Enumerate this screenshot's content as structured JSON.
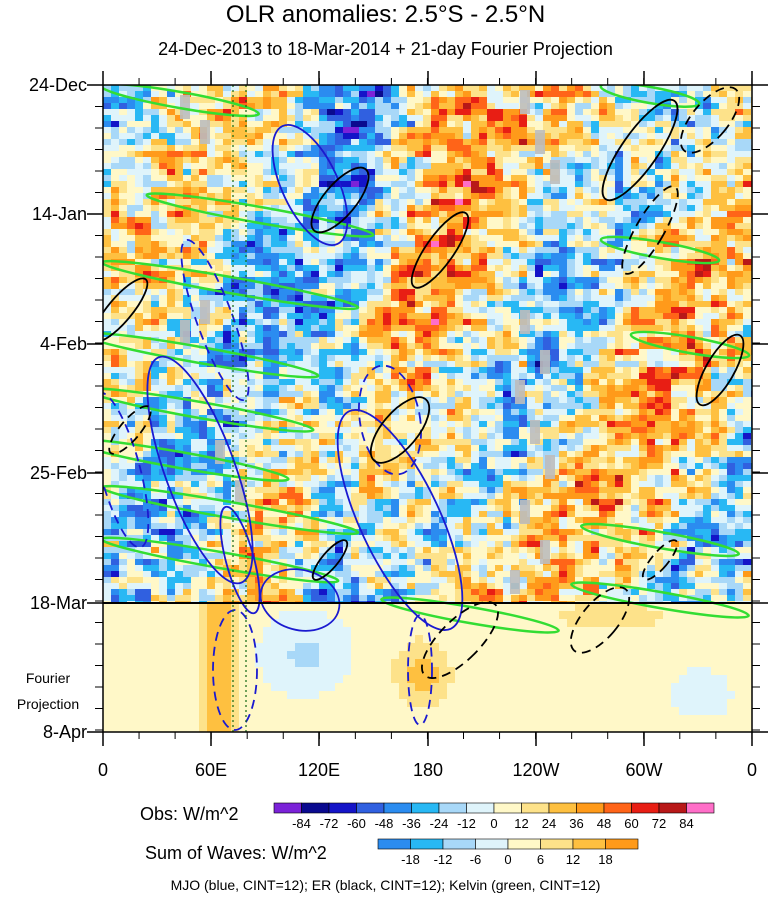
{
  "chart_data": {
    "type": "heatmap",
    "title": "OLR anomalies: 2.5°S - 2.5°N",
    "subtitle": "24-Dec-2013 to 18-Mar-2014 + 21-day Fourier Projection",
    "x_axis": {
      "tick_labels": [
        "0",
        "60E",
        "120E",
        "180",
        "120W",
        "60W",
        "0"
      ],
      "range": [
        0,
        360
      ]
    },
    "y_axis": {
      "tick_labels": [
        "24-Dec",
        "14-Jan",
        "4-Feb",
        "25-Feb",
        "18-Mar",
        "8-Apr"
      ],
      "projection_label": [
        "Fourier",
        "Projection"
      ]
    },
    "divider_date": "18-Mar",
    "obs_legend": {
      "title": "Obs: W/m^2",
      "labels": [
        "-84",
        "-72",
        "-60",
        "-48",
        "-36",
        "-24",
        "-12",
        "0",
        "12",
        "24",
        "36",
        "48",
        "60",
        "72",
        "84"
      ],
      "colors": [
        "#7b22d8",
        "#0a0a8f",
        "#1414c8",
        "#3060e0",
        "#2b8cf0",
        "#28b8f4",
        "#a8d8f8",
        "#dff4fb",
        "#fff8c8",
        "#fde28a",
        "#fec040",
        "#ff9a1a",
        "#ff6418",
        "#e81e14",
        "#b81818",
        "#ff6ec8"
      ]
    },
    "waves_legend": {
      "title": "Sum of Waves: W/m^2",
      "labels": [
        "-18",
        "-12",
        "-6",
        "0",
        "6",
        "12",
        "18"
      ],
      "colors": [
        "#2b8cf0",
        "#28b8f4",
        "#a8d8f8",
        "#dff4fb",
        "#fff8c8",
        "#fde28a",
        "#fec040",
        "#ff9a1a"
      ]
    },
    "contour_legend": "MJO (blue, CINT=12); ER (black, CINT=12); Kelvin (green, CINT=12)"
  }
}
